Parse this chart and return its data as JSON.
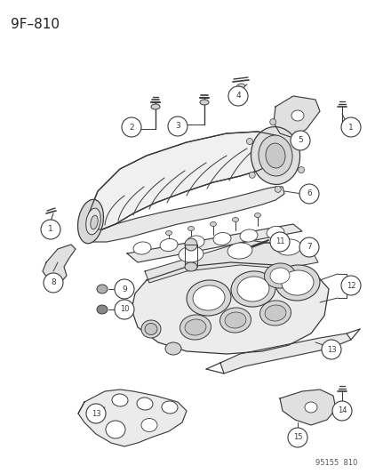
{
  "title": "9F–810",
  "footer": "95155  810",
  "bg_color": "#ffffff",
  "lc": "#3a3a3a",
  "fig_width": 4.14,
  "fig_height": 5.33,
  "dpi": 100
}
